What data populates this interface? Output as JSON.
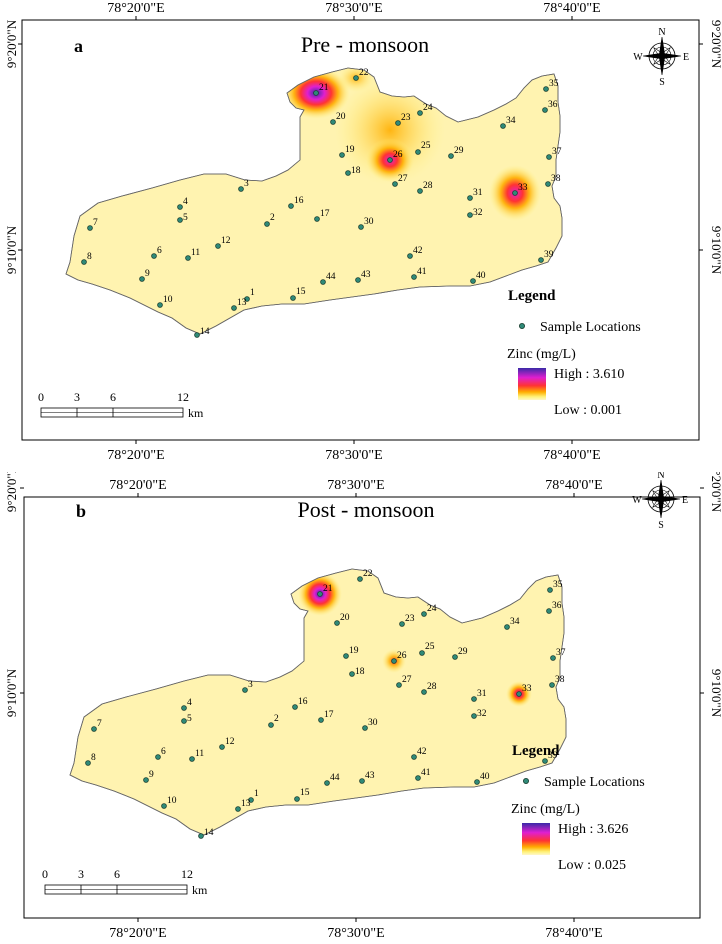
{
  "legend": {
    "heading": "Legend",
    "sample_label": "Sample Locations",
    "zinc_title": "Zinc (mg/L)",
    "colors": [
      "#3a2aa8",
      "#e01fd0",
      "#ff3333",
      "#ffae00",
      "#fff27a",
      "#fff7c8"
    ]
  },
  "scale": {
    "ticks": [
      "0",
      "3",
      "6",
      "12"
    ],
    "unit": "km"
  },
  "axis": {
    "top": [
      "78°20'0\"E",
      "78°30'0\"E",
      "78°40'0\"E"
    ],
    "bottom": [
      "78°20'0\"E",
      "78°30'0\"E",
      "78°40'0\"E"
    ],
    "left": [
      "9°20'0\"N",
      "9°10'0\"N"
    ],
    "right": [
      "9°20'0\"N",
      "9°10'0\"N"
    ]
  },
  "compass": {
    "n": "N",
    "s": "S",
    "e": "E",
    "w": "W"
  },
  "panels": [
    {
      "letter": "a",
      "title": "Pre - monsoon",
      "high": "High : 3.610",
      "low": "Low : 0.001"
    },
    {
      "letter": "b",
      "title": "Post - monsoon",
      "high": "High : 3.626",
      "low": "Low : 0.025"
    }
  ],
  "sites": [
    "1",
    "2",
    "3",
    "4",
    "5",
    "6",
    "7",
    "8",
    "9",
    "10",
    "11",
    "12",
    "13",
    "14",
    "15",
    "16",
    "17",
    "18",
    "19",
    "20",
    "21",
    "22",
    "23",
    "24",
    "25",
    "26",
    "27",
    "28",
    "29",
    "30",
    "31",
    "32",
    "33",
    "34",
    "35",
    "36",
    "37",
    "38",
    "39",
    "40",
    "41",
    "42",
    "43",
    "44"
  ]
}
